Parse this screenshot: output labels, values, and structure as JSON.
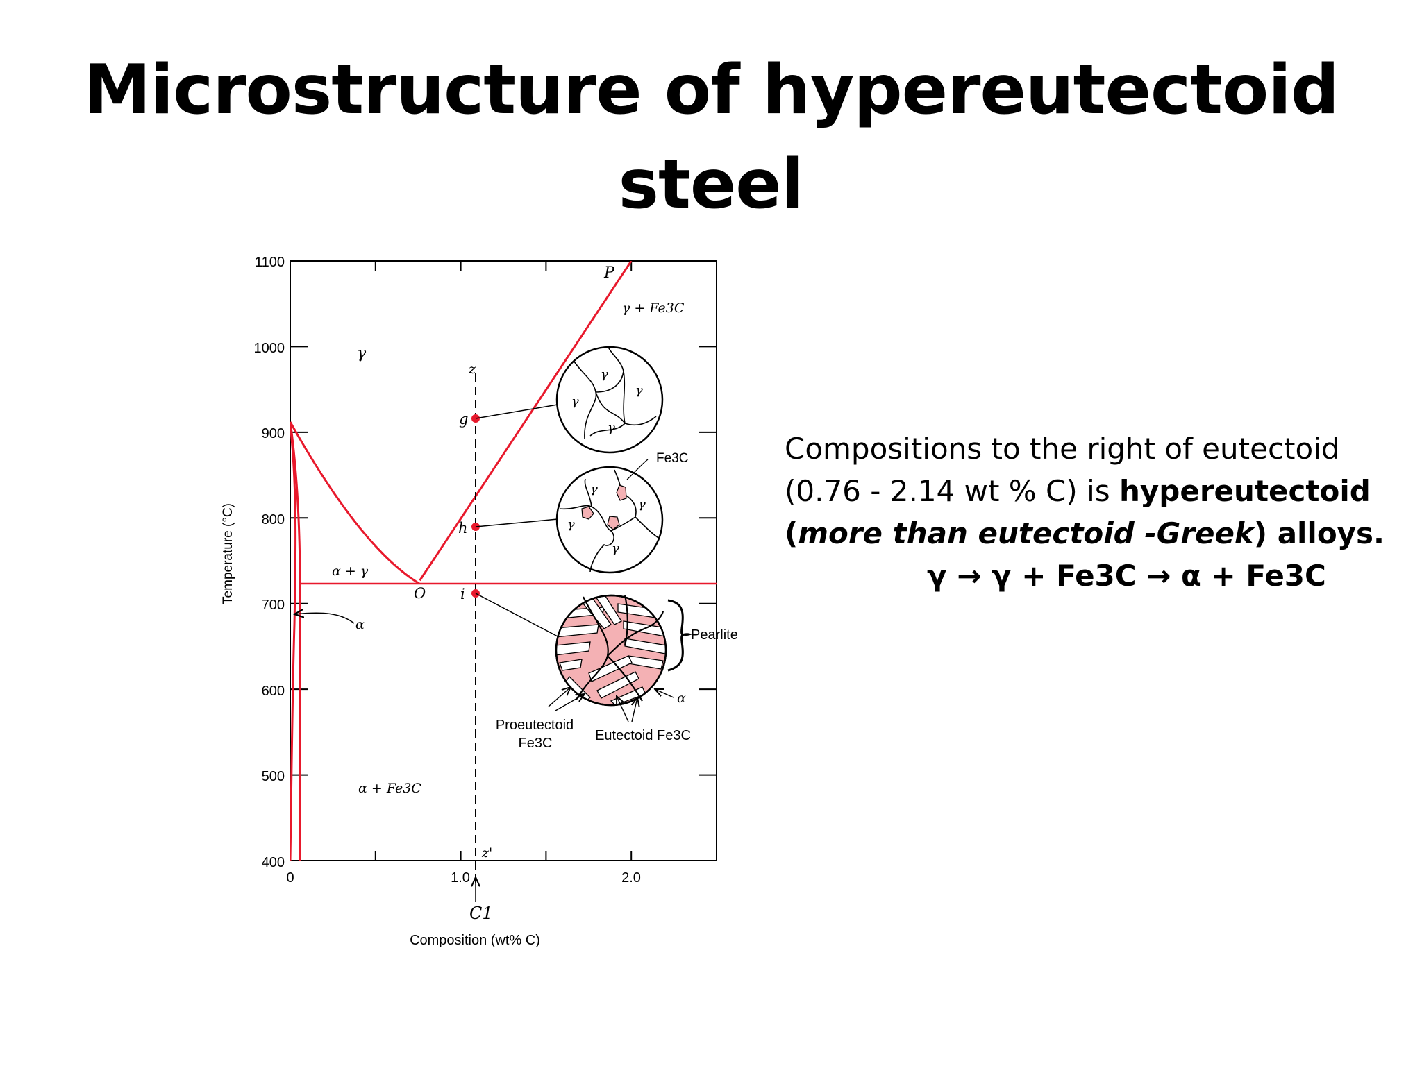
{
  "title": {
    "line1": "Microstructure of hypereutectoid",
    "line2": "steel"
  },
  "description": {
    "line1": "Compositions to the right of eutectoid",
    "line2_plain": "(0.76 - 2.14 wt % C) is ",
    "line2_bold": "hypereutectoid",
    "line3_bold_paren": "(",
    "line3_bold_italic": "more than eutectoid -Greek",
    "line3_bold_end": ") alloys.",
    "reaction": "γ → γ + Fe3C → α + Fe3C"
  },
  "chart_data": {
    "type": "phase-diagram",
    "xlabel": "Composition (wt% C)",
    "ylabel": "Temperature (°C)",
    "xlim": [
      0,
      2.5
    ],
    "ylim": [
      400,
      1100
    ],
    "xticks": [
      "0",
      "1.0",
      "2.0"
    ],
    "yticks": [
      "400",
      "500",
      "600",
      "700",
      "800",
      "900",
      "1000",
      "1100"
    ],
    "eutectoid": {
      "composition": 0.76,
      "temperature": 727,
      "label": "O"
    },
    "gamma_acm_line": [
      [
        0.76,
        727
      ],
      [
        2.0,
        1100
      ]
    ],
    "point_P_label": "P",
    "alloy": {
      "composition": 1.09,
      "label_top": "z",
      "label_bottom": "z'",
      "marker": "C1"
    },
    "points": [
      {
        "label": "g",
        "temperature": 915
      },
      {
        "label": "h",
        "temperature": 788
      },
      {
        "label": "i",
        "temperature": 712
      }
    ],
    "regions": [
      "γ",
      "α + γ",
      "γ + Fe3C",
      "α + Fe3C",
      "α"
    ],
    "annotations": {
      "fe3c": "Fe3C",
      "pearlite": "Pearlite",
      "alpha": "α",
      "proeutectoid_1": "Proeutectoid",
      "proeutectoid_2": "Fe3C",
      "eutectoid_fe3c": "Eutectoid Fe3C",
      "grain": "γ"
    },
    "colors": {
      "phase_lines": "#e8192c",
      "points": "#e8192c",
      "particles": "#f4b1b4"
    }
  }
}
